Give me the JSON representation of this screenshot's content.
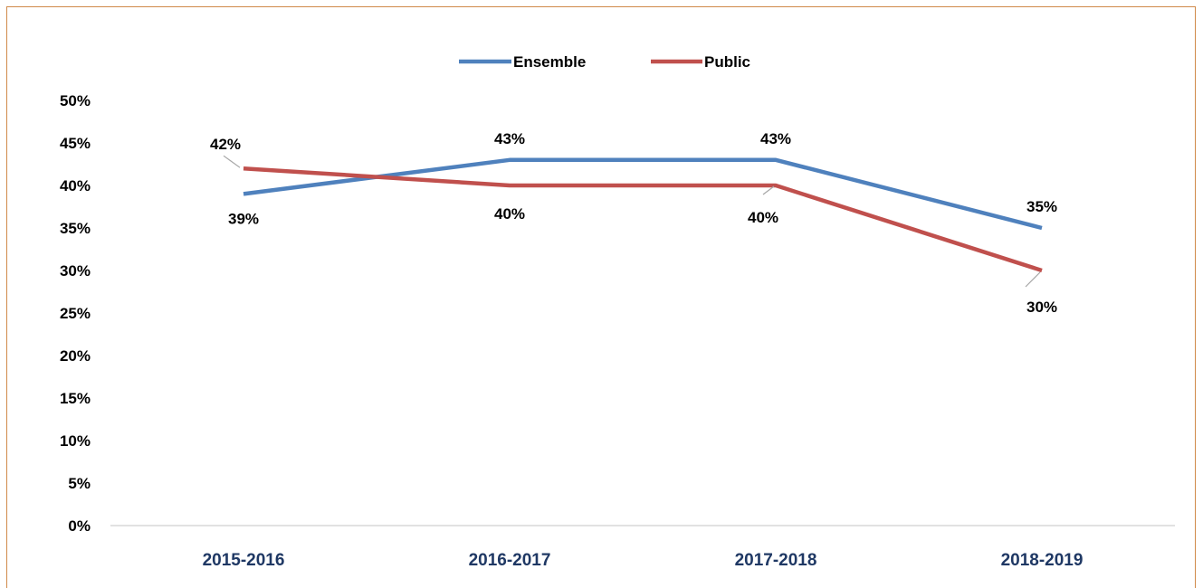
{
  "colors": {
    "frame": "#d08a4a",
    "axis": "#d9d9d9",
    "xtick_text": "#1f3864",
    "Ensemble": "#4f81bd",
    "Public": "#c0504d"
  },
  "chart_data": {
    "type": "line",
    "categories": [
      "2015-2016",
      "2016-2017",
      "2017-2018",
      "2018-2019"
    ],
    "series": [
      {
        "name": "Ensemble",
        "values": [
          39,
          43,
          43,
          35
        ],
        "labels": [
          "39%",
          "43%",
          "43%",
          "35%"
        ]
      },
      {
        "name": "Public",
        "values": [
          42,
          40,
          40,
          30
        ],
        "labels": [
          "42%",
          "40%",
          "40%",
          "30%"
        ]
      }
    ],
    "yticks": [
      "0%",
      "5%",
      "10%",
      "15%",
      "20%",
      "25%",
      "30%",
      "35%",
      "40%",
      "45%",
      "50%"
    ],
    "ylim": [
      0,
      50
    ],
    "grid": false,
    "legend_position": "top-center",
    "title": "",
    "xlabel": "",
    "ylabel": ""
  }
}
